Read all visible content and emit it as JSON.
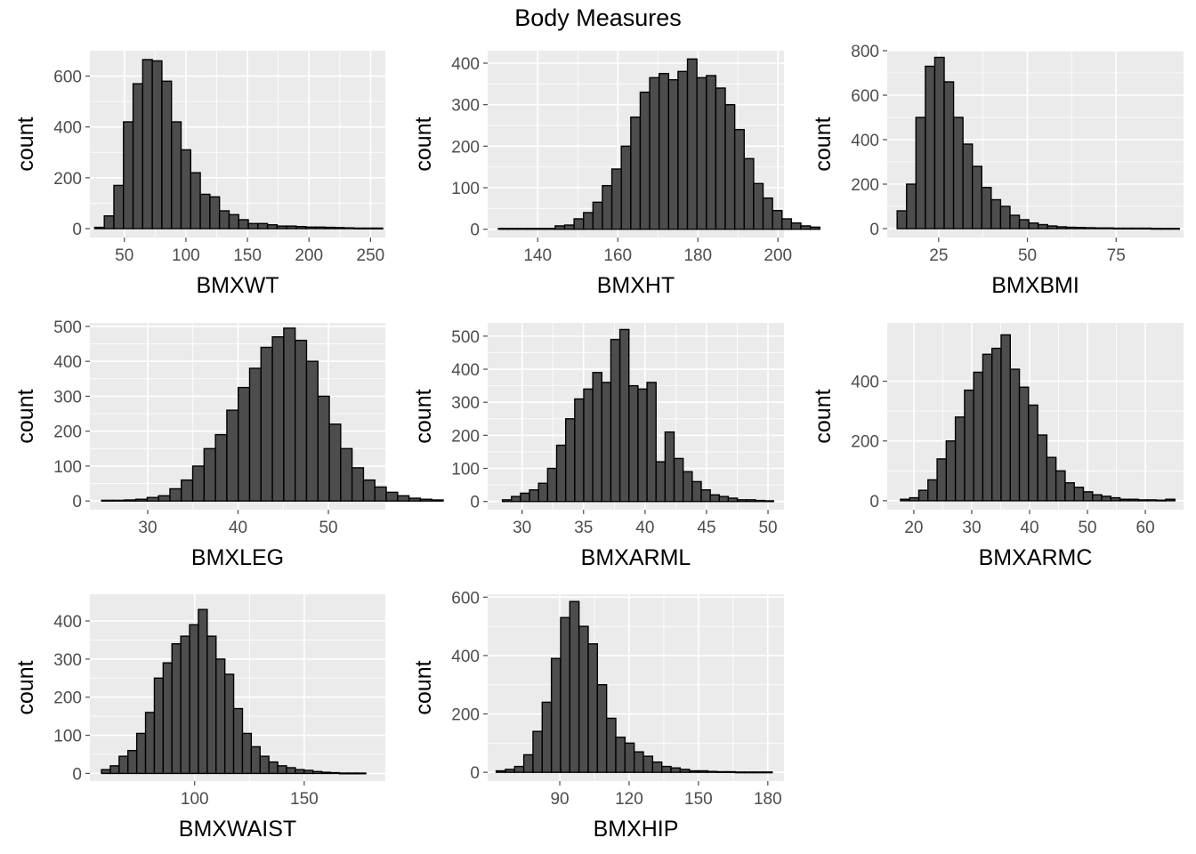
{
  "figure": {
    "title": "Body Measures"
  },
  "style": {
    "panel_bg": "#EBEBEB",
    "grid_color": "#FFFFFF",
    "bar_fill": "#4D4D4D",
    "bar_stroke": "#000000",
    "tick_color": "#4D4D4D"
  },
  "chart_data": [
    {
      "type": "bar",
      "xlabel": "BMXWT",
      "ylabel": "count",
      "xlim": [
        22,
        262
      ],
      "ylim": [
        -35,
        700
      ],
      "xticks": [
        50,
        100,
        150,
        200,
        250
      ],
      "yticks": [
        0,
        200,
        400,
        600
      ],
      "x_start": 25.9,
      "bin_width": 7.8,
      "counts": [
        5,
        50,
        170,
        420,
        570,
        665,
        660,
        580,
        420,
        310,
        220,
        135,
        125,
        70,
        55,
        35,
        20,
        20,
        15,
        10,
        10,
        8,
        6,
        6,
        5,
        4,
        3,
        2,
        2,
        2
      ]
    },
    {
      "type": "bar",
      "xlabel": "BMXHT",
      "ylabel": "count",
      "xlim": [
        127.5,
        201.5
      ],
      "ylim": [
        -20,
        430
      ],
      "xticks": [
        140,
        160,
        180,
        200
      ],
      "yticks": [
        0,
        100,
        200,
        300,
        400
      ],
      "x_start": 130.2,
      "bin_width": 2.36,
      "counts": [
        2,
        2,
        2,
        2,
        2,
        2,
        8,
        10,
        25,
        40,
        65,
        105,
        145,
        200,
        270,
        330,
        365,
        375,
        360,
        380,
        410,
        365,
        370,
        340,
        300,
        240,
        170,
        110,
        75,
        45,
        25,
        15,
        8,
        5
      ]
    },
    {
      "type": "bar",
      "xlabel": "BMXBMI",
      "ylabel": "count",
      "xlim": [
        10.5,
        94
      ],
      "ylim": [
        -40,
        800
      ],
      "xticks": [
        25,
        50,
        75
      ],
      "yticks": [
        0,
        200,
        400,
        600,
        800
      ],
      "x_start": 13.3,
      "bin_width": 2.65,
      "counts": [
        80,
        200,
        500,
        730,
        770,
        660,
        500,
        380,
        280,
        185,
        130,
        100,
        60,
        40,
        25,
        18,
        12,
        8,
        6,
        5,
        4,
        3,
        3,
        2,
        2,
        2,
        2,
        1,
        1,
        1
      ]
    },
    {
      "type": "bar",
      "xlabel": "BMXLEG",
      "ylabel": "count",
      "xlim": [
        23.6,
        56.3
      ],
      "ylim": [
        -25,
        510
      ],
      "xticks": [
        30,
        40,
        50
      ],
      "yticks": [
        0,
        100,
        200,
        300,
        400,
        500
      ],
      "x_start": 24.9,
      "bin_width": 1.26,
      "counts": [
        2,
        2,
        3,
        5,
        10,
        15,
        35,
        60,
        100,
        150,
        190,
        260,
        325,
        380,
        440,
        470,
        495,
        460,
        400,
        300,
        220,
        150,
        95,
        60,
        40,
        25,
        15,
        8,
        5,
        3
      ]
    },
    {
      "type": "bar",
      "xlabel": "BMXARML",
      "ylabel": "count",
      "xlim": [
        27.2,
        51.3
      ],
      "ylim": [
        -25,
        540
      ],
      "xticks": [
        30,
        35,
        40,
        45,
        50
      ],
      "yticks": [
        0,
        100,
        200,
        300,
        400,
        500
      ],
      "x_start": 28.4,
      "bin_width": 0.735,
      "counts": [
        5,
        15,
        25,
        35,
        55,
        100,
        170,
        250,
        310,
        340,
        390,
        360,
        490,
        520,
        350,
        340,
        360,
        120,
        210,
        130,
        90,
        60,
        35,
        20,
        15,
        10,
        5,
        5,
        3,
        2
      ]
    },
    {
      "type": "bar",
      "xlabel": "BMXARMC",
      "ylabel": "count",
      "xlim": [
        15.4,
        66.6
      ],
      "ylim": [
        -30,
        595
      ],
      "xticks": [
        20,
        30,
        40,
        50,
        60
      ],
      "yticks": [
        0,
        200,
        400
      ],
      "x_start": 17.7,
      "bin_width": 1.58,
      "counts": [
        5,
        10,
        35,
        70,
        140,
        200,
        280,
        370,
        430,
        490,
        510,
        555,
        440,
        380,
        320,
        220,
        145,
        100,
        60,
        45,
        30,
        20,
        15,
        10,
        5,
        5,
        3,
        3,
        2,
        5
      ]
    },
    {
      "type": "bar",
      "xlabel": "BMXWAIST",
      "ylabel": "count",
      "xlim": [
        52.2,
        187
      ],
      "ylim": [
        -20,
        470
      ],
      "xticks": [
        100,
        150
      ],
      "yticks": [
        0,
        100,
        200,
        300,
        400
      ],
      "x_start": 57.5,
      "bin_width": 4.02,
      "counts": [
        10,
        20,
        45,
        60,
        105,
        160,
        250,
        290,
        340,
        360,
        390,
        430,
        360,
        300,
        260,
        170,
        105,
        70,
        45,
        30,
        20,
        15,
        10,
        8,
        5,
        3,
        2,
        1,
        1,
        1
      ]
    },
    {
      "type": "bar",
      "xlabel": "BMXHIP",
      "ylabel": "count",
      "xlim": [
        58.8,
        187
      ],
      "ylim": [
        -30,
        610
      ],
      "xticks": [
        90,
        120,
        150,
        180
      ],
      "yticks": [
        0,
        200,
        400,
        600
      ],
      "x_start": 62.5,
      "bin_width": 3.98,
      "counts": [
        5,
        10,
        20,
        60,
        140,
        240,
        390,
        530,
        585,
        500,
        440,
        300,
        185,
        120,
        100,
        70,
        55,
        35,
        20,
        15,
        10,
        5,
        5,
        3,
        2,
        2,
        1,
        1,
        1,
        1
      ]
    }
  ]
}
